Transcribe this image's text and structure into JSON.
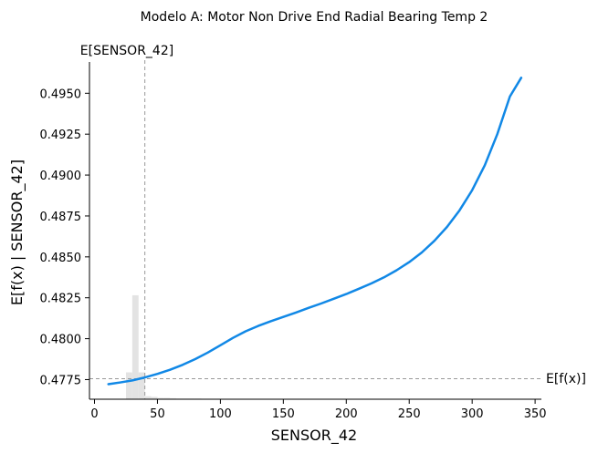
{
  "chart_data": {
    "type": "line",
    "title": "Modelo A: Motor Non Drive End Radial Bearing Temp 2",
    "xlabel": "SENSOR_42",
    "ylabel": "E[f(x) | SENSOR_42]",
    "xlim": [
      -4,
      355
    ],
    "ylim": [
      0.4763,
      0.4968
    ],
    "x_ticks": [
      0,
      50,
      100,
      150,
      200,
      250,
      300,
      350
    ],
    "x_tick_labels": [
      "0",
      "50",
      "100",
      "150",
      "200",
      "250",
      "300",
      "350"
    ],
    "y_ticks": [
      0.4775,
      0.48,
      0.4825,
      0.485,
      0.4875,
      0.49,
      0.4925,
      0.495
    ],
    "y_tick_labels": [
      "0.4775",
      "0.4800",
      "0.4825",
      "0.4850",
      "0.4875",
      "0.4900",
      "0.4925",
      "0.4950"
    ],
    "expected_x": {
      "value": 40,
      "label": "E[SENSOR_42]"
    },
    "expected_y": {
      "value": 0.47755,
      "label": "E[f(x)]"
    },
    "colors": {
      "line": "#1188e6",
      "histogram": "#e3e3e3",
      "reference": "#999999"
    },
    "series": [
      {
        "x": [
          11,
          20,
          30,
          40,
          50,
          60,
          70,
          80,
          90,
          100,
          110,
          120,
          130,
          140,
          150,
          160,
          170,
          180,
          190,
          200,
          210,
          220,
          230,
          240,
          250,
          260,
          270,
          280,
          290,
          300,
          310,
          320,
          330,
          339
        ],
        "y": [
          0.47722,
          0.47732,
          0.47745,
          0.47763,
          0.47785,
          0.4781,
          0.4784,
          0.47875,
          0.47915,
          0.4796,
          0.48005,
          0.48045,
          0.48078,
          0.48107,
          0.48133,
          0.4816,
          0.48188,
          0.48215,
          0.48244,
          0.48273,
          0.48305,
          0.48338,
          0.48375,
          0.48418,
          0.48468,
          0.48527,
          0.48598,
          0.48683,
          0.48785,
          0.48908,
          0.4906,
          0.4925,
          0.4948,
          0.49595
        ]
      }
    ],
    "histogram": {
      "bin_edges": [
        25,
        30,
        35,
        40,
        45,
        50,
        55,
        60,
        65,
        70,
        75,
        80,
        85,
        90,
        95,
        100,
        105,
        110,
        115,
        120,
        125,
        130
      ],
      "heights": [
        0.08,
        0.31,
        0.08,
        0.009,
        0.007,
        0.004,
        0.004,
        0.003,
        0.002,
        0.002,
        0.002,
        0.002,
        0.001,
        0.001,
        0.001,
        0.001,
        0.001,
        0.001,
        0.001,
        0.001,
        0.001
      ]
    }
  }
}
